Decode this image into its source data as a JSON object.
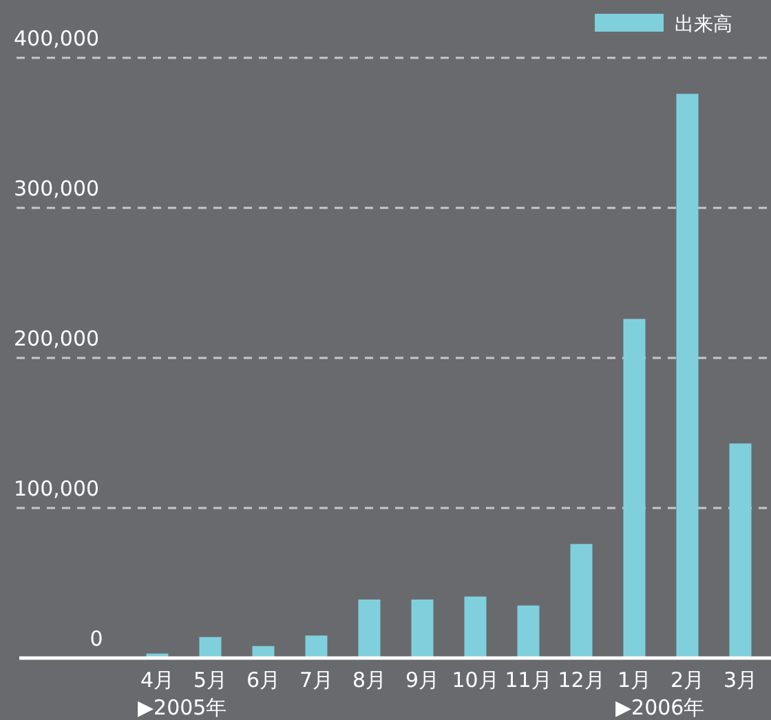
{
  "chart_data": {
    "type": "bar",
    "categories": [
      "4月",
      "5月",
      "6月",
      "7月",
      "8月",
      "9月",
      "10月",
      "11月",
      "12月",
      "1月",
      "2月",
      "3月"
    ],
    "series": [
      {
        "name": "出来高",
        "color": "#7fd0dc",
        "values": [
          3000,
          14000,
          8000,
          15000,
          39000,
          39000,
          41000,
          35000,
          76000,
          226000,
          376000,
          143000
        ]
      }
    ],
    "ylim": [
      0,
      400000
    ],
    "yticks": [
      {
        "value": 0,
        "label": "0"
      },
      {
        "value": 100000,
        "label": "100,000"
      },
      {
        "value": 200000,
        "label": "200,000"
      },
      {
        "value": 300000,
        "label": "300,000"
      },
      {
        "value": 400000,
        "label": "400,000"
      }
    ],
    "grid": "y",
    "legend": "top right",
    "annotations": [
      "▶2005年",
      "▶2006年"
    ]
  }
}
